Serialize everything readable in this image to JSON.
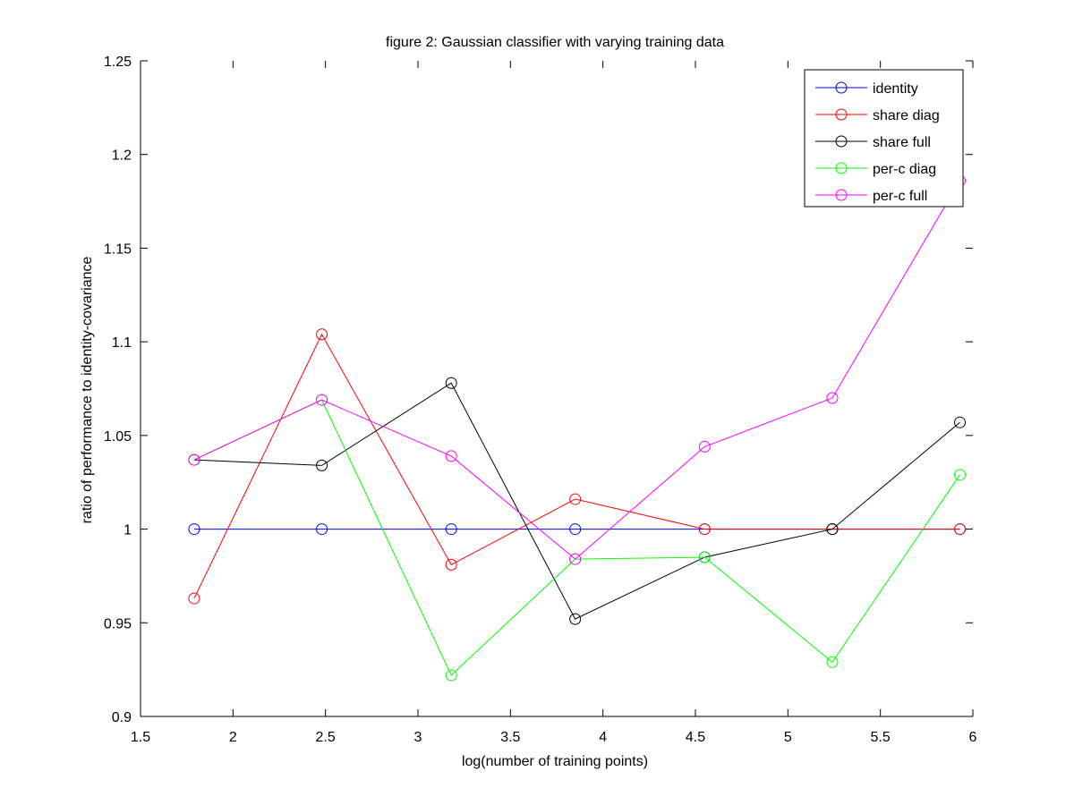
{
  "chart_data": {
    "type": "line",
    "title": "figure 2: Gaussian classifier with varying training data",
    "xlabel": "log(number of training points)",
    "ylabel": "ratio of performance to identity-covariance",
    "xlim": [
      1.5,
      6
    ],
    "ylim": [
      0.9,
      1.25
    ],
    "xticks": [
      1.5,
      2,
      2.5,
      3,
      3.5,
      4,
      4.5,
      5,
      5.5,
      6
    ],
    "xtick_labels": [
      "1.5",
      "2",
      "2.5",
      "3",
      "3.5",
      "4",
      "4.5",
      "5",
      "5.5",
      "6"
    ],
    "yticks": [
      0.9,
      0.95,
      1.0,
      1.05,
      1.1,
      1.15,
      1.2,
      1.25
    ],
    "ytick_labels": [
      "0.9",
      "0.95",
      "1",
      "1.05",
      "1.1",
      "1.15",
      "1.2",
      "1.25"
    ],
    "grid": false,
    "legend_position": "top-right",
    "marker": "circle",
    "x": [
      1.79,
      2.48,
      3.18,
      3.85,
      4.55,
      5.24,
      5.93
    ],
    "series": [
      {
        "name": "identity",
        "color": "#0000ff",
        "values": [
          1.0,
          1.0,
          1.0,
          1.0,
          1.0,
          1.0,
          1.0
        ]
      },
      {
        "name": "share diag",
        "color": "#ff0000",
        "values": [
          0.963,
          1.104,
          0.981,
          1.016,
          1.0,
          1.0,
          1.0
        ]
      },
      {
        "name": "share full",
        "color": "#000000",
        "values": [
          1.037,
          1.034,
          1.078,
          0.952,
          0.985,
          1.0,
          1.057
        ]
      },
      {
        "name": "per-c diag",
        "color": "#00ff00",
        "values": [
          1.037,
          1.069,
          0.922,
          0.984,
          0.985,
          0.929,
          1.029
        ]
      },
      {
        "name": "per-c full",
        "color": "#ff00ff",
        "values": [
          1.037,
          1.069,
          1.039,
          0.984,
          1.044,
          1.07,
          1.186
        ]
      }
    ]
  }
}
